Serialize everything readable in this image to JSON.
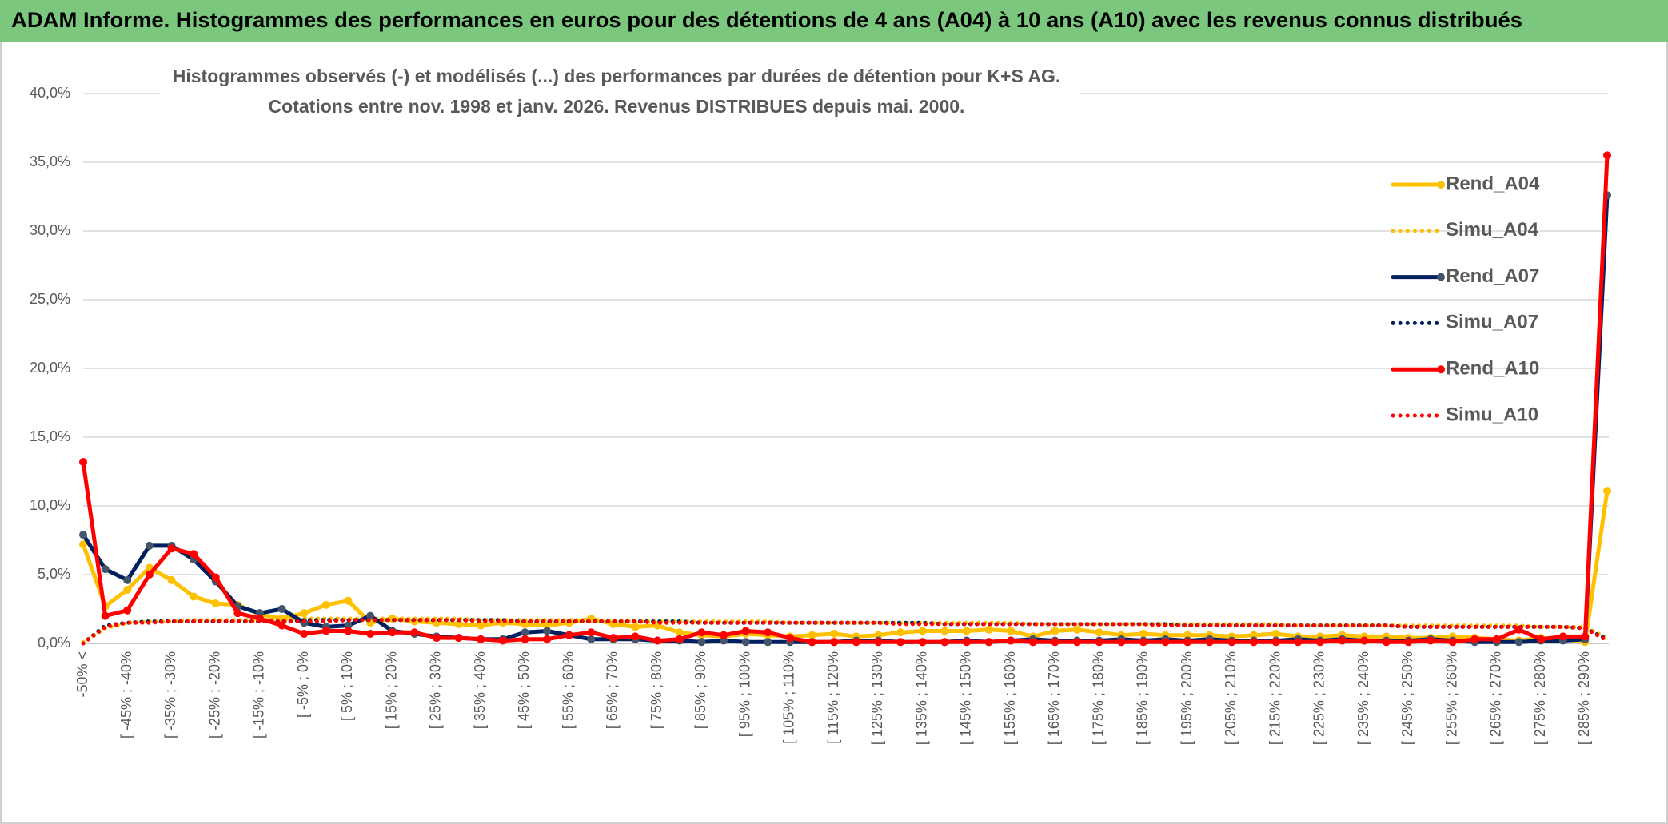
{
  "chart_data": {
    "type": "line",
    "header": "ADAM Informe. Histogrammes des performances en euros pour des détentions de 4 ans (A04) à 10 ans (A10) avec les revenus connus distribués",
    "title": [
      "Histogrammes observés (-) et modélisés (...) des performances par durées de détention pour K+S AG.",
      "Cotations entre nov. 1998 et janv. 2026. Revenus DISTRIBUES depuis mai. 2000."
    ],
    "categories": [
      "-50% <",
      null,
      "[ -45% ; -40%",
      null,
      "[ -35% ; -30%",
      null,
      "[ -25% ; -20%",
      null,
      "[ -15% ; -10%",
      null,
      "[ -5% ; 0%",
      null,
      "[ 5% ; 10%",
      null,
      "[ 15% ; 20%",
      null,
      "[ 25% ; 30%",
      null,
      "[ 35% ; 40%",
      null,
      "[ 45% ; 50%",
      null,
      "[ 55% ; 60%",
      null,
      "[ 65% ; 70%",
      null,
      "[ 75% ; 80%",
      null,
      "[ 85% ; 90%",
      null,
      "[ 95% ; 100%",
      null,
      "[ 105% ; 110%",
      null,
      "[ 115% ; 120%",
      null,
      "[ 125% ; 130%",
      null,
      "[ 135% ; 140%",
      null,
      "[ 145% ; 150%",
      null,
      "[ 155% ; 160%",
      null,
      "[ 165% ; 170%",
      null,
      "[ 175% ; 180%",
      null,
      "[ 185% ; 190%",
      null,
      "[ 195% ; 200%",
      null,
      "[ 205% ; 210%",
      null,
      "[ 215% ; 220%",
      null,
      "[ 225% ; 230%",
      null,
      "[ 235% ; 240%",
      null,
      "[ 245% ; 250%",
      null,
      "[ 255% ; 260%",
      null,
      "[ 265% ; 270%",
      null,
      "[ 275% ; 280%",
      null,
      "[ 285% ; 290%",
      null
    ],
    "ylim": [
      0,
      40
    ],
    "yticks": [
      {
        "value": 0,
        "label": "0,0%"
      },
      {
        "value": 5,
        "label": "5,0%"
      },
      {
        "value": 10,
        "label": "10,0%"
      },
      {
        "value": 15,
        "label": "15,0%"
      },
      {
        "value": 20,
        "label": "20,0%"
      },
      {
        "value": 25,
        "label": "25,0%"
      },
      {
        "value": 30,
        "label": "30,0%"
      },
      {
        "value": 35,
        "label": "35,0%"
      },
      {
        "value": 40,
        "label": "40,0%"
      }
    ],
    "grid": true,
    "legend": "right",
    "series": [
      {
        "name": "Rend_A04",
        "color": "#FFC000",
        "style": "solid",
        "values": [
          7.2,
          2.7,
          3.9,
          5.5,
          4.6,
          3.4,
          2.9,
          2.8,
          2.1,
          1.8,
          2.2,
          2.8,
          3.1,
          1.5,
          1.8,
          1.6,
          1.5,
          1.4,
          1.3,
          1.5,
          1.4,
          1.3,
          1.5,
          1.8,
          1.4,
          1.2,
          1.3,
          0.8,
          0.6,
          0.5,
          0.7,
          0.6,
          0.5,
          0.6,
          0.7,
          0.5,
          0.6,
          0.8,
          0.9,
          0.9,
          0.9,
          1.0,
          0.9,
          0.5,
          0.9,
          1.0,
          0.8,
          0.6,
          0.7,
          0.6,
          0.6,
          0.6,
          0.5,
          0.6,
          0.7,
          0.5,
          0.5,
          0.6,
          0.5,
          0.5,
          0.4,
          0.4,
          0.5,
          0.4,
          0.3,
          0.2,
          0.4,
          0.3,
          0.1,
          11.1
        ]
      },
      {
        "name": "Simu_A04",
        "color": "#FFC000",
        "style": "dotted",
        "values": [
          0.1,
          1.1,
          1.5,
          1.6,
          1.6,
          1.7,
          1.7,
          1.7,
          1.7,
          1.7,
          1.8,
          1.8,
          1.8,
          1.8,
          1.8,
          1.8,
          1.8,
          1.8,
          1.7,
          1.7,
          1.7,
          1.7,
          1.7,
          1.7,
          1.6,
          1.6,
          1.6,
          1.6,
          1.6,
          1.6,
          1.6,
          1.6,
          1.5,
          1.5,
          1.5,
          1.5,
          1.5,
          1.5,
          1.5,
          1.5,
          1.5,
          1.5,
          1.5,
          1.4,
          1.4,
          1.4,
          1.4,
          1.4,
          1.4,
          1.4,
          1.4,
          1.4,
          1.4,
          1.4,
          1.4,
          1.3,
          1.3,
          1.3,
          1.3,
          1.3,
          1.3,
          1.3,
          1.3,
          1.3,
          1.3,
          1.3,
          1.2,
          1.2,
          1.2,
          0.4
        ]
      },
      {
        "name": "Rend_A07",
        "color": "#002060",
        "style": "solid",
        "marker": "#44546A",
        "values": [
          7.9,
          5.4,
          4.6,
          7.1,
          7.1,
          6.1,
          4.5,
          2.7,
          2.2,
          2.5,
          1.5,
          1.2,
          1.3,
          2.0,
          0.9,
          0.7,
          0.5,
          0.4,
          0.3,
          0.3,
          0.8,
          0.9,
          0.6,
          0.3,
          0.3,
          0.3,
          0.2,
          0.2,
          0.1,
          0.2,
          0.1,
          0.1,
          0.1,
          0.1,
          0.1,
          0.2,
          0.2,
          0.1,
          0.1,
          0.1,
          0.2,
          0.1,
          0.2,
          0.3,
          0.2,
          0.2,
          0.2,
          0.3,
          0.2,
          0.3,
          0.2,
          0.3,
          0.2,
          0.2,
          0.2,
          0.3,
          0.2,
          0.3,
          0.2,
          0.2,
          0.2,
          0.3,
          0.2,
          0.1,
          0.1,
          0.1,
          0.2,
          0.2,
          0.3,
          32.6
        ]
      },
      {
        "name": "Simu_A07",
        "color": "#002060",
        "style": "dotted",
        "values": [
          0.0,
          1.3,
          1.5,
          1.6,
          1.6,
          1.6,
          1.6,
          1.6,
          1.6,
          1.6,
          1.7,
          1.7,
          1.7,
          1.7,
          1.7,
          1.7,
          1.7,
          1.7,
          1.7,
          1.7,
          1.6,
          1.6,
          1.6,
          1.6,
          1.6,
          1.6,
          1.6,
          1.6,
          1.5,
          1.5,
          1.5,
          1.5,
          1.5,
          1.5,
          1.5,
          1.5,
          1.5,
          1.5,
          1.5,
          1.4,
          1.4,
          1.4,
          1.4,
          1.4,
          1.4,
          1.4,
          1.4,
          1.4,
          1.4,
          1.4,
          1.3,
          1.3,
          1.3,
          1.3,
          1.3,
          1.3,
          1.3,
          1.3,
          1.3,
          1.3,
          1.2,
          1.2,
          1.2,
          1.2,
          1.2,
          1.2,
          1.2,
          1.2,
          1.1,
          0.3
        ]
      },
      {
        "name": "Rend_A10",
        "color": "#FF0000",
        "style": "solid",
        "values": [
          13.2,
          2.0,
          2.4,
          5.0,
          6.9,
          6.5,
          4.8,
          2.2,
          1.8,
          1.3,
          0.7,
          0.9,
          0.9,
          0.7,
          0.8,
          0.8,
          0.4,
          0.4,
          0.3,
          0.2,
          0.3,
          0.3,
          0.6,
          0.8,
          0.4,
          0.5,
          0.2,
          0.3,
          0.8,
          0.6,
          0.9,
          0.8,
          0.4,
          0.1,
          0.1,
          0.1,
          0.1,
          0.1,
          0.1,
          0.1,
          0.1,
          0.1,
          0.2,
          0.1,
          0.1,
          0.1,
          0.1,
          0.1,
          0.1,
          0.1,
          0.1,
          0.1,
          0.1,
          0.1,
          0.1,
          0.1,
          0.1,
          0.2,
          0.2,
          0.1,
          0.1,
          0.2,
          0.1,
          0.3,
          0.3,
          1.0,
          0.3,
          0.5,
          0.5,
          35.5
        ]
      },
      {
        "name": "Simu_A10",
        "color": "#FF0000",
        "style": "dotted",
        "values": [
          0.0,
          1.2,
          1.5,
          1.5,
          1.6,
          1.6,
          1.6,
          1.6,
          1.6,
          1.6,
          1.6,
          1.6,
          1.7,
          1.7,
          1.7,
          1.7,
          1.7,
          1.7,
          1.6,
          1.6,
          1.6,
          1.6,
          1.6,
          1.6,
          1.6,
          1.6,
          1.5,
          1.5,
          1.5,
          1.5,
          1.5,
          1.5,
          1.5,
          1.5,
          1.5,
          1.5,
          1.5,
          1.4,
          1.4,
          1.4,
          1.4,
          1.4,
          1.4,
          1.4,
          1.4,
          1.4,
          1.4,
          1.4,
          1.4,
          1.3,
          1.3,
          1.3,
          1.3,
          1.3,
          1.3,
          1.3,
          1.3,
          1.3,
          1.3,
          1.3,
          1.2,
          1.2,
          1.2,
          1.2,
          1.2,
          1.2,
          1.2,
          1.2,
          1.1,
          0.2
        ]
      }
    ]
  }
}
